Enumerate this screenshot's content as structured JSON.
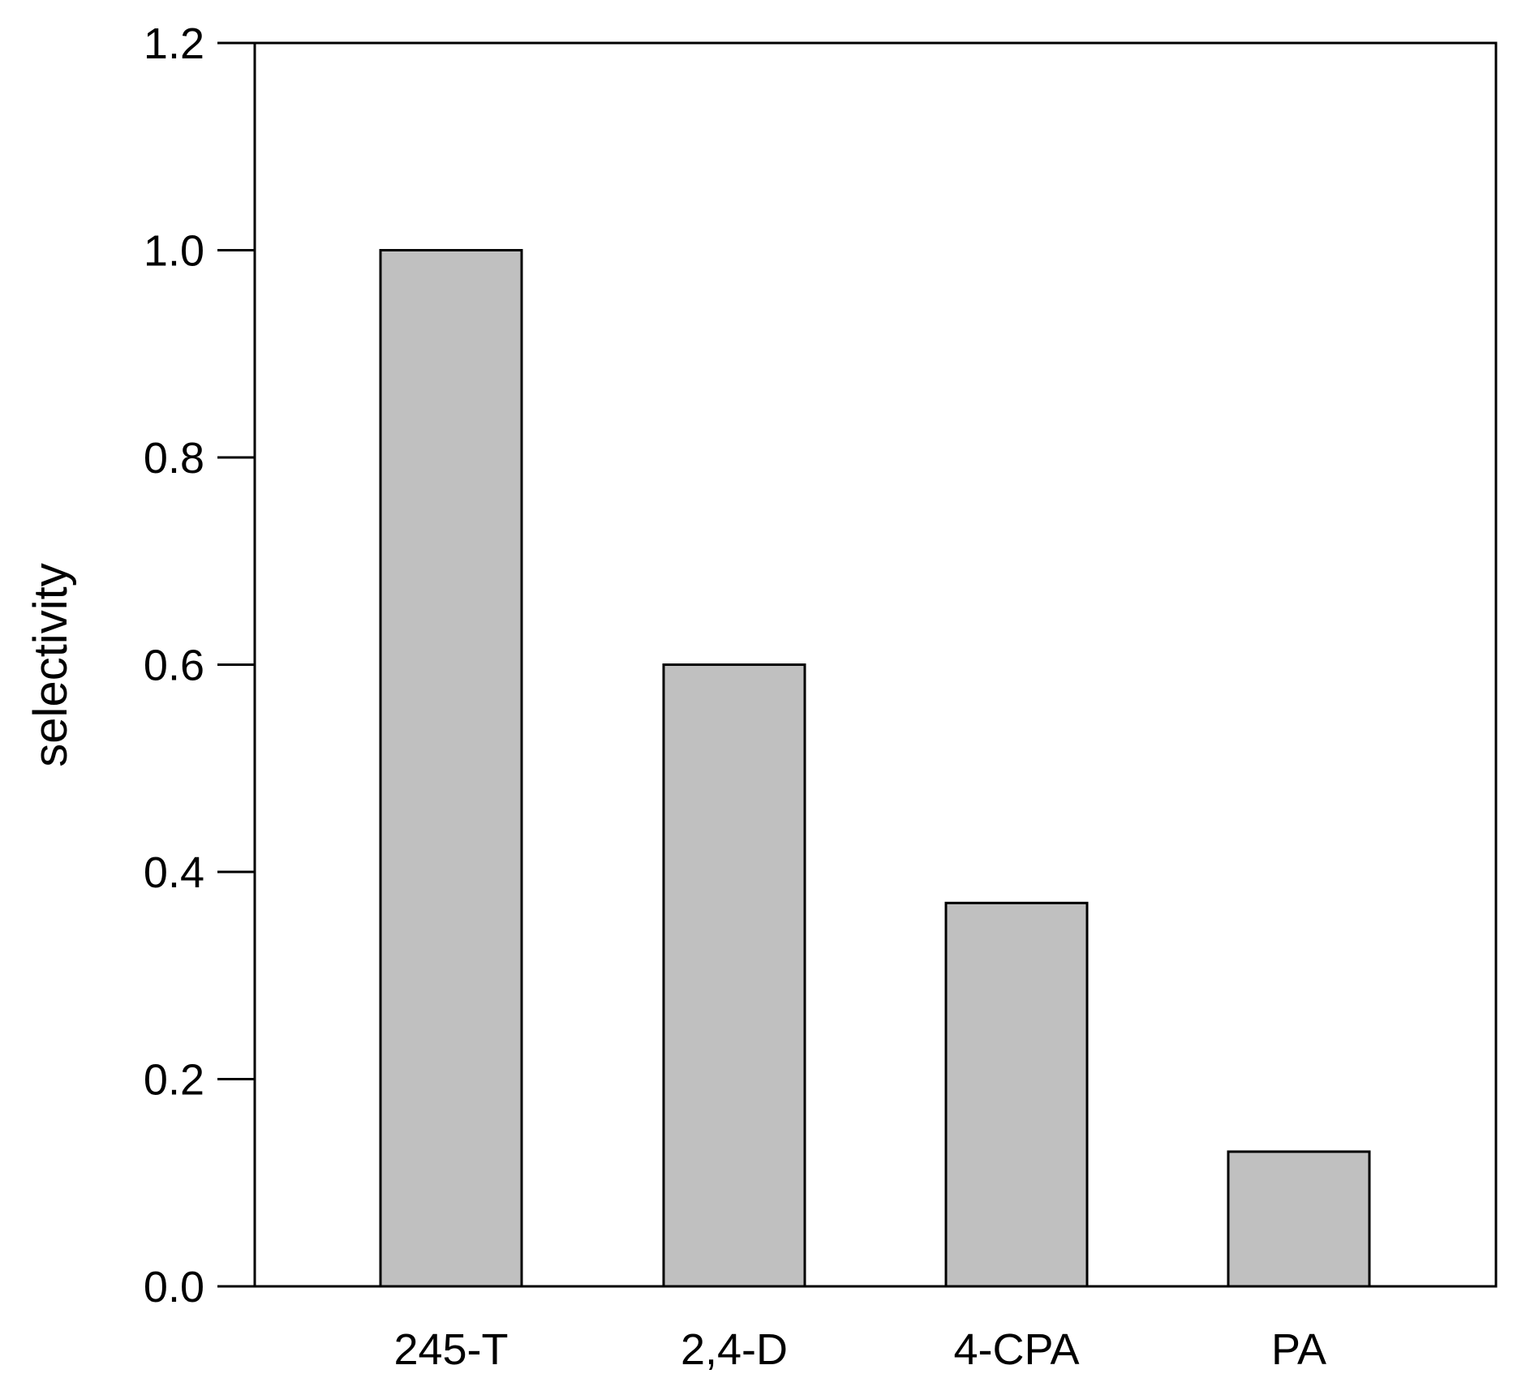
{
  "chart_data": {
    "type": "bar",
    "title": "",
    "xlabel": "",
    "ylabel": "selectivity",
    "categories": [
      "245-T",
      "2,4-D",
      "4-CPA",
      "PA"
    ],
    "values": [
      1.0,
      0.6,
      0.37,
      0.13
    ],
    "ylim": [
      0.0,
      1.2
    ],
    "yticks": [
      "0.0",
      "0.2",
      "0.4",
      "0.6",
      "0.8",
      "1.0",
      "1.2"
    ],
    "grid": false,
    "legend": "none",
    "bar_color": "#c0c0c0",
    "bar_edge_color": "#000000"
  }
}
